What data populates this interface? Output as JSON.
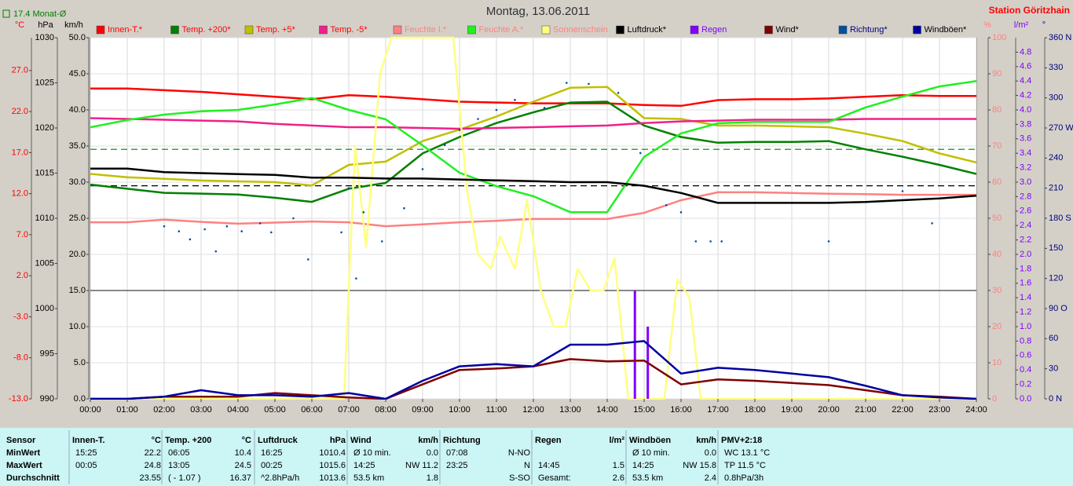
{
  "chart_data": {
    "type": "line",
    "title": "Montag, 13.06.2011",
    "subtitle": "Station Göritzhain",
    "x": [
      0,
      1,
      2,
      3,
      4,
      5,
      6,
      7,
      8,
      9,
      10,
      11,
      12,
      13,
      14,
      15,
      16,
      17,
      18,
      19,
      20,
      21,
      22,
      23,
      24
    ],
    "xlim": [
      0,
      24
    ],
    "xticks": [
      {
        "value": 0,
        "label": "00:00"
      },
      {
        "value": 1,
        "label": "01:00"
      },
      {
        "value": 2,
        "label": "02:00"
      },
      {
        "value": 3,
        "label": "03:00"
      },
      {
        "value": 4,
        "label": "04:00"
      },
      {
        "value": 5,
        "label": "05:00"
      },
      {
        "value": 6,
        "label": "06:00"
      },
      {
        "value": 7,
        "label": "07:00"
      },
      {
        "value": 8,
        "label": "08:00"
      },
      {
        "value": 9,
        "label": "09:00"
      },
      {
        "value": 10,
        "label": "10:00"
      },
      {
        "value": 11,
        "label": "11:00"
      },
      {
        "value": 12,
        "label": "12:00"
      },
      {
        "value": 13,
        "label": "13:00"
      },
      {
        "value": 14,
        "label": "14:00"
      },
      {
        "value": 15,
        "label": "15:00"
      },
      {
        "value": 16,
        "label": "16:00"
      },
      {
        "value": 17,
        "label": "17:00"
      },
      {
        "value": 18,
        "label": "18:00"
      },
      {
        "value": 19,
        "label": "19:00"
      },
      {
        "value": 20,
        "label": "20:00"
      },
      {
        "value": 21,
        "label": "21:00"
      },
      {
        "value": 22,
        "label": "22:00"
      },
      {
        "value": 23,
        "label": "23:00"
      },
      {
        "value": 24,
        "label": "24:00"
      }
    ],
    "y_axes": [
      {
        "unit": "°C",
        "color": "#ff0000",
        "ylim": [
          -13,
          31
        ],
        "yticks": [
          {
            "value": -13,
            "label": "-13.0"
          },
          {
            "value": -8,
            "label": "-8.0"
          },
          {
            "value": -3,
            "label": "-3.0"
          },
          {
            "value": 2,
            "label": "2.0"
          },
          {
            "value": 7,
            "label": "7.0"
          },
          {
            "value": 12,
            "label": "12.0"
          },
          {
            "value": 17,
            "label": "17.0"
          },
          {
            "value": 22,
            "label": "22.0"
          },
          {
            "value": 27,
            "label": "27.0"
          }
        ]
      },
      {
        "unit": "hPa",
        "color": "#000000",
        "ylim": [
          990,
          1030
        ],
        "yticks": [
          990,
          995,
          1000,
          1005,
          1010,
          1015,
          1020,
          1025,
          1030
        ]
      },
      {
        "unit": "km/h",
        "color": "#000000",
        "ylim": [
          0,
          50
        ],
        "grid": true,
        "yticks": [
          {
            "value": 0,
            "label": "0.0"
          },
          {
            "value": 5,
            "label": "5.0"
          },
          {
            "value": 10,
            "label": "10.0"
          },
          {
            "value": 15,
            "label": "15.0"
          },
          {
            "value": 20,
            "label": "20.0"
          },
          {
            "value": 25,
            "label": "25.0"
          },
          {
            "value": 30,
            "label": "30.0"
          },
          {
            "value": 35,
            "label": "35.0"
          },
          {
            "value": 40,
            "label": "40.0"
          },
          {
            "value": 45,
            "label": "45.0"
          },
          {
            "value": 50,
            "label": "50.0"
          }
        ]
      },
      {
        "unit": "%",
        "color": "#ff8080",
        "ylim": [
          0,
          100
        ],
        "yticks": [
          0,
          10,
          20,
          30,
          40,
          50,
          60,
          70,
          80,
          90,
          100
        ]
      },
      {
        "unit": "l/m²",
        "color": "#8000ff",
        "ylim": [
          0,
          5
        ],
        "yticks": [
          {
            "value": 0,
            "label": "0.0"
          },
          0.2,
          0.4,
          0.6,
          0.8,
          {
            "value": 1,
            "label": "1.0"
          },
          1.2,
          1.4,
          1.6,
          1.8,
          {
            "value": 2,
            "label": "2.0"
          },
          2.2,
          2.4,
          2.6,
          2.8,
          {
            "value": 3,
            "label": "3.0"
          },
          3.2,
          3.4,
          3.6,
          3.8,
          {
            "value": 4,
            "label": "4.0"
          },
          4.2,
          4.4,
          4.6,
          4.8
        ]
      },
      {
        "unit": "°",
        "color": "#000080",
        "ylim": [
          0,
          360
        ],
        "yticks": [
          {
            "value": 0,
            "label": "0 N"
          },
          30,
          60,
          {
            "value": 90,
            "label": "90 O"
          },
          120,
          150,
          {
            "value": 180,
            "label": "180 S"
          },
          210,
          240,
          {
            "value": 270,
            "label": "270 W"
          },
          300,
          330,
          {
            "value": 360,
            "label": "360 N"
          }
        ]
      }
    ],
    "series": [
      {
        "name": "Innen-T.*",
        "color": "#ff0000",
        "axis": 0,
        "style": "line",
        "values": [
          24.8,
          24.8,
          24.6,
          24.4,
          24.1,
          23.8,
          23.5,
          24.0,
          23.8,
          23.5,
          23.2,
          23.1,
          23.0,
          23.0,
          23.0,
          22.8,
          22.7,
          23.4,
          23.5,
          23.5,
          23.6,
          23.8,
          24.0,
          23.9,
          23.9
        ]
      },
      {
        "name": "Temp. +200*",
        "color": "#008000",
        "axis": 0,
        "style": "line",
        "values": [
          13.1,
          12.6,
          12.1,
          12.0,
          11.9,
          11.5,
          11.0,
          12.6,
          13.3,
          16.9,
          18.9,
          20.6,
          21.9,
          23.1,
          23.2,
          20.3,
          18.9,
          18.2,
          18.3,
          18.3,
          18.4,
          17.4,
          16.5,
          15.5,
          14.4
        ]
      },
      {
        "name": "Temp. +5*",
        "color": "#c0c000",
        "axis": 0,
        "style": "line",
        "values": [
          14.4,
          14.0,
          13.8,
          13.6,
          13.5,
          13.4,
          13.0,
          15.5,
          15.9,
          18.4,
          19.8,
          21.4,
          23.2,
          24.9,
          25.0,
          21.2,
          21.1,
          20.3,
          20.3,
          20.2,
          20.1,
          19.3,
          18.4,
          16.9,
          15.8
        ]
      },
      {
        "name": "Temp. -5*",
        "color": "#f0208a",
        "axis": 0,
        "style": "line",
        "values": [
          21.2,
          21.1,
          21.0,
          20.9,
          20.8,
          20.5,
          20.3,
          20.1,
          20.1,
          20.0,
          19.9,
          20.0,
          20.1,
          20.2,
          20.3,
          20.6,
          20.8,
          20.9,
          21.0,
          21.0,
          21.0,
          21.1,
          21.1,
          21.1,
          21.1
        ]
      },
      {
        "name": "Feuchte I.*",
        "color": "#ff8080",
        "axis": 3,
        "style": "line",
        "values": [
          48.9,
          48.9,
          49.6,
          49.0,
          48.5,
          48.8,
          49.1,
          48.9,
          47.8,
          48.3,
          48.9,
          49.3,
          49.8,
          49.8,
          49.8,
          51.5,
          55.0,
          57.2,
          57.2,
          57.0,
          56.8,
          56.7,
          56.5,
          56.5,
          56.5
        ]
      },
      {
        "name": "Feuchte A.*",
        "color": "#20f020",
        "axis": 3,
        "style": "line",
        "values": [
          75.2,
          77.2,
          78.7,
          79.6,
          80.0,
          81.5,
          83.3,
          80.0,
          77.4,
          70.2,
          62.6,
          58.9,
          56.1,
          51.7,
          51.7,
          67.0,
          73.5,
          76.3,
          76.7,
          76.7,
          76.7,
          80.7,
          83.7,
          86.5,
          88.0
        ]
      },
      {
        "name": "Sonnenschein",
        "color": "#ffff80",
        "axis": 3,
        "style": "line",
        "x": [
          0,
          6.87,
          7.17,
          7.47,
          7.85,
          8.15,
          9.83,
          10.2,
          10.5,
          10.85,
          11.1,
          11.5,
          11.83,
          12.2,
          12.55,
          12.87,
          13.2,
          13.55,
          13.9,
          14.2,
          14.57,
          15.55,
          15.9,
          16.23,
          16.53,
          24
        ],
        "values": [
          0,
          0,
          70,
          42,
          90,
          100,
          100,
          58,
          40,
          36,
          45,
          36,
          55,
          30,
          20,
          20,
          36,
          30,
          30,
          39,
          0,
          0,
          33,
          28,
          0,
          0
        ]
      },
      {
        "name": "Luftdruck*",
        "color": "#000000",
        "axis": 1,
        "style": "line",
        "values": [
          1015.5,
          1015.5,
          1015.1,
          1015.0,
          1014.9,
          1014.8,
          1014.5,
          1014.5,
          1014.4,
          1014.4,
          1014.3,
          1014.2,
          1014.1,
          1014.0,
          1014.0,
          1013.6,
          1012.8,
          1011.7,
          1011.7,
          1011.7,
          1011.7,
          1011.8,
          1012.0,
          1012.2,
          1012.5
        ]
      },
      {
        "name": "Regen",
        "color": "#8000ff",
        "axis": 4,
        "style": "bars",
        "x": [
          14.75,
          15.1
        ],
        "values": [
          1.5,
          1.0
        ]
      },
      {
        "name": "Wind*",
        "color": "#800000",
        "axis": 2,
        "style": "line",
        "values": [
          0,
          0,
          0.3,
          0.3,
          0.3,
          0.8,
          0.5,
          0.2,
          0,
          2.0,
          4.0,
          4.2,
          4.5,
          5.5,
          5.2,
          5.3,
          2.0,
          2.7,
          2.5,
          2.2,
          1.9,
          1.2,
          0.5,
          0.3,
          0
        ]
      },
      {
        "name": "Richtung*",
        "color": "#0050a0",
        "axis": 5,
        "style": "dots",
        "x": [
          2.0,
          2.4,
          2.7,
          3.1,
          3.4,
          3.7,
          4.1,
          4.6,
          4.9,
          5.5,
          5.9,
          6.8,
          7.0,
          7.2,
          7.4,
          7.9,
          8.5,
          9.0,
          9.6,
          10.0,
          10.5,
          11.0,
          11.5,
          12.3,
          12.9,
          13.5,
          14.3,
          14.9,
          15.6,
          16.0,
          16.4,
          16.8,
          17.1,
          20.0,
          22.0,
          22.8
        ],
        "values": [
          172,
          167,
          159,
          169,
          147,
          172,
          167,
          175,
          166,
          180,
          139,
          166,
          210,
          120,
          186,
          157,
          190,
          229,
          253,
          268,
          279,
          288,
          298,
          290,
          315,
          314,
          305,
          245,
          193,
          186,
          157,
          157,
          157,
          157,
          207,
          175
        ]
      },
      {
        "name": "Windböen*",
        "color": "#0000a0",
        "axis": 2,
        "style": "line",
        "values": [
          0,
          0,
          0.3,
          1.2,
          0.5,
          0.5,
          0.3,
          0.8,
          0,
          2.5,
          4.5,
          4.8,
          4.5,
          7.5,
          7.5,
          8.0,
          3.5,
          4.3,
          4.0,
          3.5,
          3.0,
          1.8,
          0.5,
          0.2,
          0
        ]
      }
    ],
    "reference_lines": [
      {
        "axis": 0,
        "value": 17.4,
        "color": "#008000",
        "dashed": true,
        "label": "17.4 Monat-Ø"
      },
      {
        "axis": 1,
        "value": 1013.6,
        "color": "#000000",
        "dashed": true
      },
      {
        "axis": 2,
        "value": 15,
        "color": "#404040",
        "dashed": false
      }
    ]
  },
  "table": {
    "row_labels": [
      "Sensor",
      "MinWert",
      "MaxWert",
      "Durchschnitt"
    ],
    "columns": [
      {
        "header": [
          "Innen-T.",
          "°C"
        ],
        "rows": [
          [
            "15:25",
            "22.2"
          ],
          [
            "00:05",
            "24.8"
          ],
          [
            "23.55"
          ]
        ]
      },
      {
        "header": [
          "Temp. +200",
          "°C"
        ],
        "rows": [
          [
            "06:05",
            "10.4"
          ],
          [
            "13:05",
            "24.5"
          ],
          [
            "( - 1.07 )",
            "16.37"
          ]
        ]
      },
      {
        "header": [
          "Luftdruck",
          "hPa"
        ],
        "rows": [
          [
            "16:25",
            "1010.4"
          ],
          [
            "00:25",
            "1015.6"
          ],
          [
            "^2.8hPa/h",
            "1013.6"
          ]
        ]
      },
      {
        "header": [
          "Wind",
          "km/h"
        ],
        "rows": [
          [
            "Ø 10 min.",
            "0.0"
          ],
          [
            "14:25",
            "NW 11.2"
          ],
          [
            "53.5 km",
            "1.8"
          ]
        ]
      },
      {
        "header": [
          "Richtung"
        ],
        "rows": [
          [
            "07:08",
            "N-NO"
          ],
          [
            "23:25",
            "N"
          ],
          [
            "S-SO"
          ]
        ]
      },
      {
        "header": [
          "Regen",
          "l/m²"
        ],
        "rows": [
          [],
          [
            "14:45",
            "1.5"
          ],
          [
            "Gesamt:",
            "2.6"
          ]
        ]
      },
      {
        "header": [
          "Windböen",
          "km/h"
        ],
        "rows": [
          [
            "Ø 10 min.",
            "0.0"
          ],
          [
            "14:25",
            "NW 15.8"
          ],
          [
            "53.5 km",
            "2.4"
          ]
        ]
      },
      {
        "header": [
          "PMV+2:18"
        ],
        "rows": [
          [
            "WC 13.1 °C"
          ],
          [
            "TP 11.5 °C"
          ],
          [
            "0.8hPa/3h"
          ]
        ]
      }
    ]
  }
}
